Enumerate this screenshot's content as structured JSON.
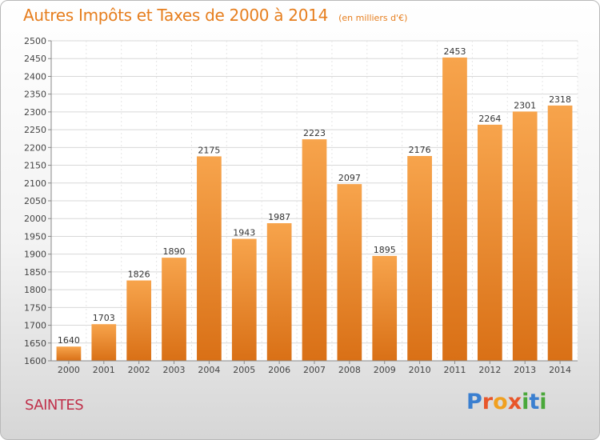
{
  "header": {
    "title": "Autres Impôts et Taxes de 2000 à 2014",
    "unit": "(en milliers d'€)"
  },
  "footer": {
    "city": "SAINTES",
    "brand": "Proxiti",
    "brand_letters": [
      {
        "char": "P",
        "color": "#3a7fd0"
      },
      {
        "char": "r",
        "color": "#e8562a"
      },
      {
        "char": "o",
        "color": "#f0a020"
      },
      {
        "char": "x",
        "color": "#e8562a"
      },
      {
        "char": "i",
        "color": "#4aa83a"
      },
      {
        "char": "t",
        "color": "#3a7fd0"
      },
      {
        "char": "i",
        "color": "#4aa83a"
      }
    ]
  },
  "colors": {
    "title": "#e67e1e",
    "bar_top": "#f7a44c",
    "bar_bottom": "#d97016",
    "city": "#c0304a"
  },
  "chart_data": {
    "type": "bar",
    "title": "Autres Impôts et Taxes de 2000 à 2014",
    "subtitle": "(en milliers d'€)",
    "categories": [
      "2000",
      "2001",
      "2002",
      "2003",
      "2004",
      "2005",
      "2006",
      "2007",
      "2008",
      "2009",
      "2010",
      "2011",
      "2012",
      "2013",
      "2014"
    ],
    "values": [
      1640,
      1703,
      1826,
      1890,
      2175,
      1943,
      1987,
      2223,
      2097,
      1895,
      2176,
      2453,
      2264,
      2301,
      2318
    ],
    "ylim": [
      1600,
      2500
    ],
    "ytick_step": 50,
    "grid": true,
    "data_labels": true
  }
}
